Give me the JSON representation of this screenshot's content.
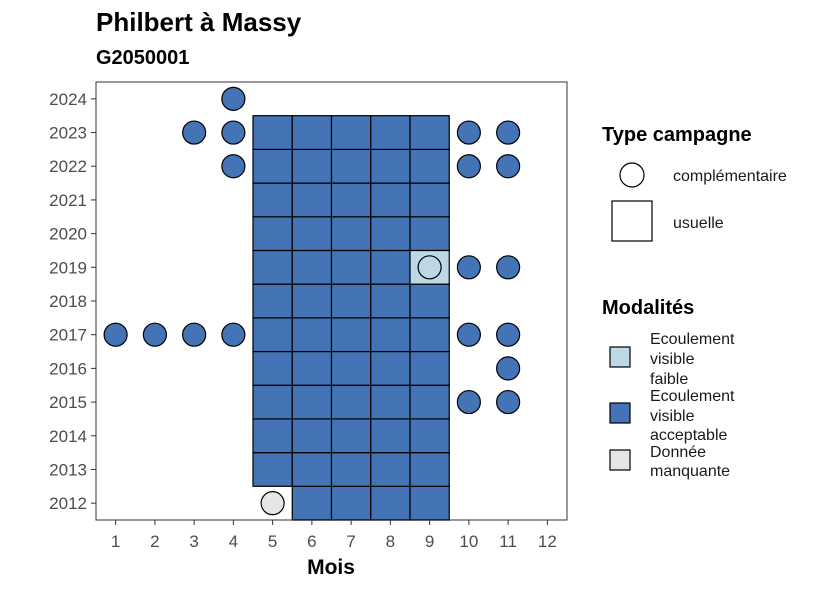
{
  "chart_data": {
    "type": "heatmap",
    "title": "Philbert à Massy",
    "subtitle": "G2050001",
    "xlabel": "Mois",
    "ylabel": "",
    "x_ticks": [
      1,
      2,
      3,
      4,
      5,
      6,
      7,
      8,
      9,
      10,
      11,
      12
    ],
    "y_ticks": [
      2012,
      2013,
      2014,
      2015,
      2016,
      2017,
      2018,
      2019,
      2020,
      2021,
      2022,
      2023,
      2024
    ],
    "xlim": [
      0.5,
      12.5
    ],
    "ylim": [
      2011.5,
      2024.5
    ],
    "grid": false,
    "legend_position": "right",
    "modalites": [
      {
        "key": "faible",
        "label": "Ecoulement visible faible",
        "lines": [
          "Ecoulement",
          "visible",
          "faible"
        ],
        "color": "#bcd8e6"
      },
      {
        "key": "acceptable",
        "label": "Ecoulement visible acceptable",
        "lines": [
          "Ecoulement",
          "visible",
          "acceptable"
        ],
        "color": "#4473b6"
      },
      {
        "key": "manquante",
        "label": "Donnée manquante",
        "lines": [
          "Donnée",
          "manquante"
        ],
        "color": "#e6e6e6"
      }
    ],
    "campagnes": [
      {
        "key": "complementaire",
        "label": "complémentaire",
        "shape": "circle"
      },
      {
        "key": "usuelle",
        "label": "usuelle",
        "shape": "square"
      }
    ],
    "points": [
      {
        "month": 5,
        "year": 2012,
        "campagne": "complementaire",
        "modalite": "manquante"
      },
      {
        "month": 6,
        "year": 2012,
        "campagne": "usuelle",
        "modalite": "acceptable"
      },
      {
        "month": 7,
        "year": 2012,
        "campagne": "usuelle",
        "modalite": "acceptable"
      },
      {
        "month": 8,
        "year": 2012,
        "campagne": "usuelle",
        "modalite": "acceptable"
      },
      {
        "month": 9,
        "year": 2012,
        "campagne": "usuelle",
        "modalite": "acceptable"
      },
      {
        "month": 5,
        "year": 2013,
        "campagne": "usuelle",
        "modalite": "acceptable"
      },
      {
        "month": 6,
        "year": 2013,
        "campagne": "usuelle",
        "modalite": "acceptable"
      },
      {
        "month": 7,
        "year": 2013,
        "campagne": "usuelle",
        "modalite": "acceptable"
      },
      {
        "month": 8,
        "year": 2013,
        "campagne": "usuelle",
        "modalite": "acceptable"
      },
      {
        "month": 9,
        "year": 2013,
        "campagne": "usuelle",
        "modalite": "acceptable"
      },
      {
        "month": 5,
        "year": 2014,
        "campagne": "usuelle",
        "modalite": "acceptable"
      },
      {
        "month": 6,
        "year": 2014,
        "campagne": "usuelle",
        "modalite": "acceptable"
      },
      {
        "month": 7,
        "year": 2014,
        "campagne": "usuelle",
        "modalite": "acceptable"
      },
      {
        "month": 8,
        "year": 2014,
        "campagne": "usuelle",
        "modalite": "acceptable"
      },
      {
        "month": 9,
        "year": 2014,
        "campagne": "usuelle",
        "modalite": "acceptable"
      },
      {
        "month": 5,
        "year": 2015,
        "campagne": "usuelle",
        "modalite": "acceptable"
      },
      {
        "month": 6,
        "year": 2015,
        "campagne": "usuelle",
        "modalite": "acceptable"
      },
      {
        "month": 7,
        "year": 2015,
        "campagne": "usuelle",
        "modalite": "acceptable"
      },
      {
        "month": 8,
        "year": 2015,
        "campagne": "usuelle",
        "modalite": "acceptable"
      },
      {
        "month": 9,
        "year": 2015,
        "campagne": "usuelle",
        "modalite": "acceptable"
      },
      {
        "month": 10,
        "year": 2015,
        "campagne": "complementaire",
        "modalite": "acceptable"
      },
      {
        "month": 11,
        "year": 2015,
        "campagne": "complementaire",
        "modalite": "acceptable"
      },
      {
        "month": 5,
        "year": 2016,
        "campagne": "usuelle",
        "modalite": "acceptable"
      },
      {
        "month": 6,
        "year": 2016,
        "campagne": "usuelle",
        "modalite": "acceptable"
      },
      {
        "month": 7,
        "year": 2016,
        "campagne": "usuelle",
        "modalite": "acceptable"
      },
      {
        "month": 8,
        "year": 2016,
        "campagne": "usuelle",
        "modalite": "acceptable"
      },
      {
        "month": 9,
        "year": 2016,
        "campagne": "usuelle",
        "modalite": "acceptable"
      },
      {
        "month": 11,
        "year": 2016,
        "campagne": "complementaire",
        "modalite": "acceptable"
      },
      {
        "month": 1,
        "year": 2017,
        "campagne": "complementaire",
        "modalite": "acceptable"
      },
      {
        "month": 2,
        "year": 2017,
        "campagne": "complementaire",
        "modalite": "acceptable"
      },
      {
        "month": 3,
        "year": 2017,
        "campagne": "complementaire",
        "modalite": "acceptable"
      },
      {
        "month": 4,
        "year": 2017,
        "campagne": "complementaire",
        "modalite": "acceptable"
      },
      {
        "month": 5,
        "year": 2017,
        "campagne": "usuelle",
        "modalite": "acceptable"
      },
      {
        "month": 6,
        "year": 2017,
        "campagne": "usuelle",
        "modalite": "acceptable"
      },
      {
        "month": 7,
        "year": 2017,
        "campagne": "usuelle",
        "modalite": "acceptable"
      },
      {
        "month": 8,
        "year": 2017,
        "campagne": "usuelle",
        "modalite": "acceptable"
      },
      {
        "month": 9,
        "year": 2017,
        "campagne": "usuelle",
        "modalite": "acceptable"
      },
      {
        "month": 10,
        "year": 2017,
        "campagne": "complementaire",
        "modalite": "acceptable"
      },
      {
        "month": 11,
        "year": 2017,
        "campagne": "complementaire",
        "modalite": "acceptable"
      },
      {
        "month": 5,
        "year": 2018,
        "campagne": "usuelle",
        "modalite": "acceptable"
      },
      {
        "month": 6,
        "year": 2018,
        "campagne": "usuelle",
        "modalite": "acceptable"
      },
      {
        "month": 7,
        "year": 2018,
        "campagne": "usuelle",
        "modalite": "acceptable"
      },
      {
        "month": 8,
        "year": 2018,
        "campagne": "usuelle",
        "modalite": "acceptable"
      },
      {
        "month": 9,
        "year": 2018,
        "campagne": "usuelle",
        "modalite": "acceptable"
      },
      {
        "month": 5,
        "year": 2019,
        "campagne": "usuelle",
        "modalite": "acceptable"
      },
      {
        "month": 6,
        "year": 2019,
        "campagne": "usuelle",
        "modalite": "acceptable"
      },
      {
        "month": 7,
        "year": 2019,
        "campagne": "usuelle",
        "modalite": "acceptable"
      },
      {
        "month": 8,
        "year": 2019,
        "campagne": "usuelle",
        "modalite": "acceptable"
      },
      {
        "month": 9,
        "year": 2019,
        "campagne": "usuelle",
        "modalite": "faible"
      },
      {
        "month": 9,
        "year": 2019,
        "campagne": "complementaire",
        "modalite": "faible"
      },
      {
        "month": 10,
        "year": 2019,
        "campagne": "complementaire",
        "modalite": "acceptable"
      },
      {
        "month": 11,
        "year": 2019,
        "campagne": "complementaire",
        "modalite": "acceptable"
      },
      {
        "month": 5,
        "year": 2020,
        "campagne": "usuelle",
        "modalite": "acceptable"
      },
      {
        "month": 6,
        "year": 2020,
        "campagne": "usuelle",
        "modalite": "acceptable"
      },
      {
        "month": 7,
        "year": 2020,
        "campagne": "usuelle",
        "modalite": "acceptable"
      },
      {
        "month": 8,
        "year": 2020,
        "campagne": "usuelle",
        "modalite": "acceptable"
      },
      {
        "month": 9,
        "year": 2020,
        "campagne": "usuelle",
        "modalite": "acceptable"
      },
      {
        "month": 5,
        "year": 2021,
        "campagne": "usuelle",
        "modalite": "acceptable"
      },
      {
        "month": 6,
        "year": 2021,
        "campagne": "usuelle",
        "modalite": "acceptable"
      },
      {
        "month": 7,
        "year": 2021,
        "campagne": "usuelle",
        "modalite": "acceptable"
      },
      {
        "month": 8,
        "year": 2021,
        "campagne": "usuelle",
        "modalite": "acceptable"
      },
      {
        "month": 9,
        "year": 2021,
        "campagne": "usuelle",
        "modalite": "acceptable"
      },
      {
        "month": 4,
        "year": 2022,
        "campagne": "complementaire",
        "modalite": "acceptable"
      },
      {
        "month": 5,
        "year": 2022,
        "campagne": "usuelle",
        "modalite": "acceptable"
      },
      {
        "month": 6,
        "year": 2022,
        "campagne": "usuelle",
        "modalite": "acceptable"
      },
      {
        "month": 7,
        "year": 2022,
        "campagne": "usuelle",
        "modalite": "acceptable"
      },
      {
        "month": 8,
        "year": 2022,
        "campagne": "usuelle",
        "modalite": "acceptable"
      },
      {
        "month": 9,
        "year": 2022,
        "campagne": "usuelle",
        "modalite": "acceptable"
      },
      {
        "month": 10,
        "year": 2022,
        "campagne": "complementaire",
        "modalite": "acceptable"
      },
      {
        "month": 11,
        "year": 2022,
        "campagne": "complementaire",
        "modalite": "acceptable"
      },
      {
        "month": 3,
        "year": 2023,
        "campagne": "complementaire",
        "modalite": "acceptable"
      },
      {
        "month": 4,
        "year": 2023,
        "campagne": "complementaire",
        "modalite": "acceptable"
      },
      {
        "month": 5,
        "year": 2023,
        "campagne": "usuelle",
        "modalite": "acceptable"
      },
      {
        "month": 6,
        "year": 2023,
        "campagne": "usuelle",
        "modalite": "acceptable"
      },
      {
        "month": 7,
        "year": 2023,
        "campagne": "usuelle",
        "modalite": "acceptable"
      },
      {
        "month": 8,
        "year": 2023,
        "campagne": "usuelle",
        "modalite": "acceptable"
      },
      {
        "month": 9,
        "year": 2023,
        "campagne": "usuelle",
        "modalite": "acceptable"
      },
      {
        "month": 10,
        "year": 2023,
        "campagne": "complementaire",
        "modalite": "acceptable"
      },
      {
        "month": 11,
        "year": 2023,
        "campagne": "complementaire",
        "modalite": "acceptable"
      },
      {
        "month": 4,
        "year": 2024,
        "campagne": "complementaire",
        "modalite": "acceptable"
      }
    ],
    "legend_titles": {
      "campagne": "Type campagne",
      "modalite": "Modalités"
    }
  }
}
